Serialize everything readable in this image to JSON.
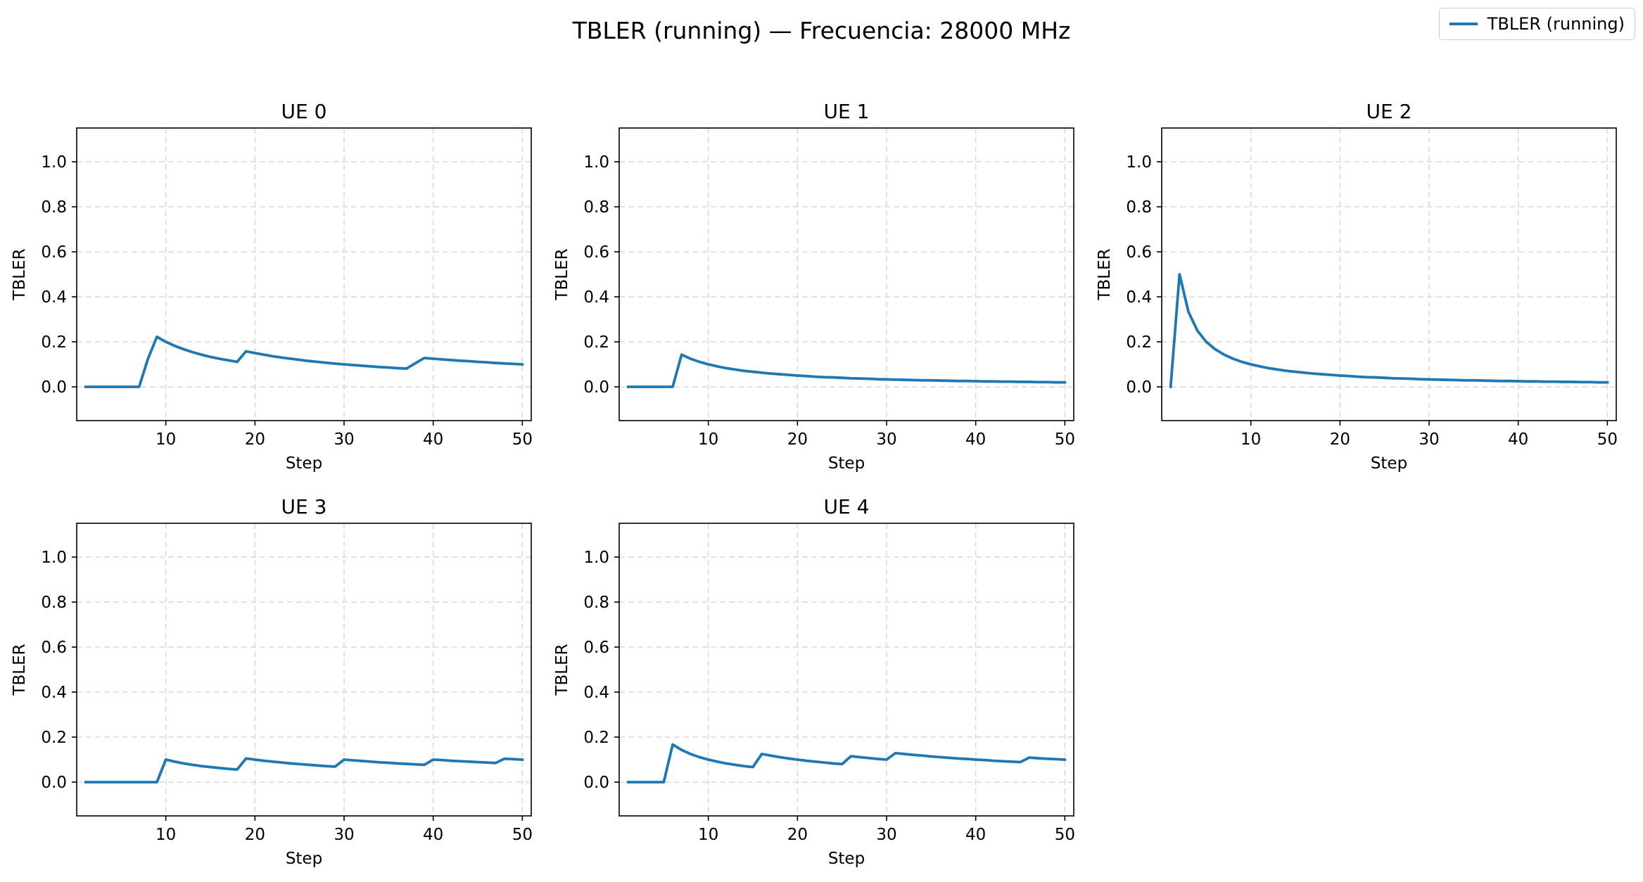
{
  "figure": {
    "title": "TBLER (running) — Frecuencia: 28000 MHz",
    "legend_label": "TBLER (running)",
    "line_color": "#1f77b4",
    "grid_color": "#d9d9d9"
  },
  "chart_data": [
    {
      "type": "line",
      "title": "UE 0",
      "xlabel": "Step",
      "ylabel": "TBLER",
      "xlim": [
        0,
        51
      ],
      "ylim": [
        -0.15,
        1.15
      ],
      "xticks": [
        10,
        20,
        30,
        40,
        50
      ],
      "yticks": [
        0.0,
        0.2,
        0.4,
        0.6,
        0.8,
        1.0
      ],
      "grid": true,
      "series": [
        {
          "name": "TBLER (running)",
          "x": [
            1,
            2,
            3,
            4,
            5,
            6,
            7,
            8,
            9,
            10,
            11,
            12,
            13,
            14,
            15,
            16,
            17,
            18,
            19,
            20,
            21,
            22,
            23,
            24,
            25,
            26,
            27,
            28,
            29,
            30,
            31,
            32,
            33,
            34,
            35,
            36,
            37,
            38,
            39,
            40,
            41,
            42,
            43,
            44,
            45,
            46,
            47,
            48,
            49,
            50
          ],
          "y": [
            0,
            0,
            0,
            0,
            0,
            0,
            0,
            0.125,
            0.222,
            0.2,
            0.182,
            0.167,
            0.154,
            0.143,
            0.133,
            0.125,
            0.118,
            0.111,
            0.158,
            0.15,
            0.143,
            0.136,
            0.13,
            0.125,
            0.12,
            0.115,
            0.111,
            0.107,
            0.103,
            0.1,
            0.097,
            0.094,
            0.091,
            0.088,
            0.086,
            0.083,
            0.081,
            0.105,
            0.128,
            0.125,
            0.122,
            0.119,
            0.116,
            0.114,
            0.111,
            0.109,
            0.106,
            0.104,
            0.102,
            0.1
          ]
        }
      ]
    },
    {
      "type": "line",
      "title": "UE 1",
      "xlabel": "Step",
      "ylabel": "TBLER",
      "xlim": [
        0,
        51
      ],
      "ylim": [
        -0.15,
        1.15
      ],
      "xticks": [
        10,
        20,
        30,
        40,
        50
      ],
      "yticks": [
        0.0,
        0.2,
        0.4,
        0.6,
        0.8,
        1.0
      ],
      "grid": true,
      "series": [
        {
          "name": "TBLER (running)",
          "x": [
            1,
            2,
            3,
            4,
            5,
            6,
            7,
            8,
            9,
            10,
            11,
            12,
            13,
            14,
            15,
            16,
            17,
            18,
            19,
            20,
            21,
            22,
            23,
            24,
            25,
            26,
            27,
            28,
            29,
            30,
            31,
            32,
            33,
            34,
            35,
            36,
            37,
            38,
            39,
            40,
            41,
            42,
            43,
            44,
            45,
            46,
            47,
            48,
            49,
            50
          ],
          "y": [
            0,
            0,
            0,
            0,
            0,
            0,
            0.143,
            0.125,
            0.111,
            0.1,
            0.091,
            0.083,
            0.077,
            0.071,
            0.067,
            0.063,
            0.059,
            0.056,
            0.053,
            0.05,
            0.048,
            0.045,
            0.043,
            0.042,
            0.04,
            0.038,
            0.037,
            0.036,
            0.034,
            0.033,
            0.032,
            0.031,
            0.03,
            0.029,
            0.029,
            0.028,
            0.027,
            0.026,
            0.026,
            0.025,
            0.024,
            0.024,
            0.023,
            0.023,
            0.022,
            0.022,
            0.021,
            0.021,
            0.02,
            0.02
          ]
        }
      ]
    },
    {
      "type": "line",
      "title": "UE 2",
      "xlabel": "Step",
      "ylabel": "TBLER",
      "xlim": [
        0,
        51
      ],
      "ylim": [
        -0.15,
        1.15
      ],
      "xticks": [
        10,
        20,
        30,
        40,
        50
      ],
      "yticks": [
        0.0,
        0.2,
        0.4,
        0.6,
        0.8,
        1.0
      ],
      "grid": true,
      "series": [
        {
          "name": "TBLER (running)",
          "x": [
            1,
            2,
            3,
            4,
            5,
            6,
            7,
            8,
            9,
            10,
            11,
            12,
            13,
            14,
            15,
            16,
            17,
            18,
            19,
            20,
            21,
            22,
            23,
            24,
            25,
            26,
            27,
            28,
            29,
            30,
            31,
            32,
            33,
            34,
            35,
            36,
            37,
            38,
            39,
            40,
            41,
            42,
            43,
            44,
            45,
            46,
            47,
            48,
            49,
            50
          ],
          "y": [
            0,
            0.5,
            0.333,
            0.25,
            0.2,
            0.167,
            0.143,
            0.125,
            0.111,
            0.1,
            0.091,
            0.083,
            0.077,
            0.071,
            0.067,
            0.063,
            0.059,
            0.056,
            0.053,
            0.05,
            0.048,
            0.045,
            0.043,
            0.042,
            0.04,
            0.038,
            0.037,
            0.036,
            0.034,
            0.033,
            0.032,
            0.031,
            0.03,
            0.029,
            0.029,
            0.028,
            0.027,
            0.026,
            0.026,
            0.025,
            0.024,
            0.024,
            0.023,
            0.023,
            0.022,
            0.022,
            0.021,
            0.021,
            0.02,
            0.02
          ]
        }
      ]
    },
    {
      "type": "line",
      "title": "UE 3",
      "xlabel": "Step",
      "ylabel": "TBLER",
      "xlim": [
        0,
        51
      ],
      "ylim": [
        -0.15,
        1.15
      ],
      "xticks": [
        10,
        20,
        30,
        40,
        50
      ],
      "yticks": [
        0.0,
        0.2,
        0.4,
        0.6,
        0.8,
        1.0
      ],
      "grid": true,
      "series": [
        {
          "name": "TBLER (running)",
          "x": [
            1,
            2,
            3,
            4,
            5,
            6,
            7,
            8,
            9,
            10,
            11,
            12,
            13,
            14,
            15,
            16,
            17,
            18,
            19,
            20,
            21,
            22,
            23,
            24,
            25,
            26,
            27,
            28,
            29,
            30,
            31,
            32,
            33,
            34,
            35,
            36,
            37,
            38,
            39,
            40,
            41,
            42,
            43,
            44,
            45,
            46,
            47,
            48,
            49,
            50
          ],
          "y": [
            0,
            0,
            0,
            0,
            0,
            0,
            0,
            0,
            0,
            0.1,
            0.091,
            0.083,
            0.077,
            0.071,
            0.067,
            0.063,
            0.059,
            0.056,
            0.105,
            0.1,
            0.095,
            0.091,
            0.087,
            0.083,
            0.08,
            0.077,
            0.074,
            0.071,
            0.069,
            0.1,
            0.097,
            0.094,
            0.091,
            0.088,
            0.086,
            0.083,
            0.081,
            0.079,
            0.077,
            0.1,
            0.098,
            0.095,
            0.093,
            0.091,
            0.089,
            0.087,
            0.085,
            0.104,
            0.102,
            0.1
          ]
        }
      ]
    },
    {
      "type": "line",
      "title": "UE 4",
      "xlabel": "Step",
      "ylabel": "TBLER",
      "xlim": [
        0,
        51
      ],
      "ylim": [
        -0.15,
        1.15
      ],
      "xticks": [
        10,
        20,
        30,
        40,
        50
      ],
      "yticks": [
        0.0,
        0.2,
        0.4,
        0.6,
        0.8,
        1.0
      ],
      "grid": true,
      "series": [
        {
          "name": "TBLER (running)",
          "x": [
            1,
            2,
            3,
            4,
            5,
            6,
            7,
            8,
            9,
            10,
            11,
            12,
            13,
            14,
            15,
            16,
            17,
            18,
            19,
            20,
            21,
            22,
            23,
            24,
            25,
            26,
            27,
            28,
            29,
            30,
            31,
            32,
            33,
            34,
            35,
            36,
            37,
            38,
            39,
            40,
            41,
            42,
            43,
            44,
            45,
            46,
            47,
            48,
            49,
            50
          ],
          "y": [
            0,
            0,
            0,
            0,
            0,
            0.167,
            0.143,
            0.125,
            0.111,
            0.1,
            0.091,
            0.083,
            0.077,
            0.071,
            0.067,
            0.125,
            0.118,
            0.111,
            0.105,
            0.1,
            0.095,
            0.091,
            0.087,
            0.083,
            0.08,
            0.115,
            0.111,
            0.107,
            0.103,
            0.1,
            0.129,
            0.125,
            0.121,
            0.118,
            0.114,
            0.111,
            0.108,
            0.105,
            0.103,
            0.1,
            0.098,
            0.095,
            0.093,
            0.091,
            0.089,
            0.109,
            0.106,
            0.104,
            0.102,
            0.1
          ]
        }
      ]
    }
  ]
}
